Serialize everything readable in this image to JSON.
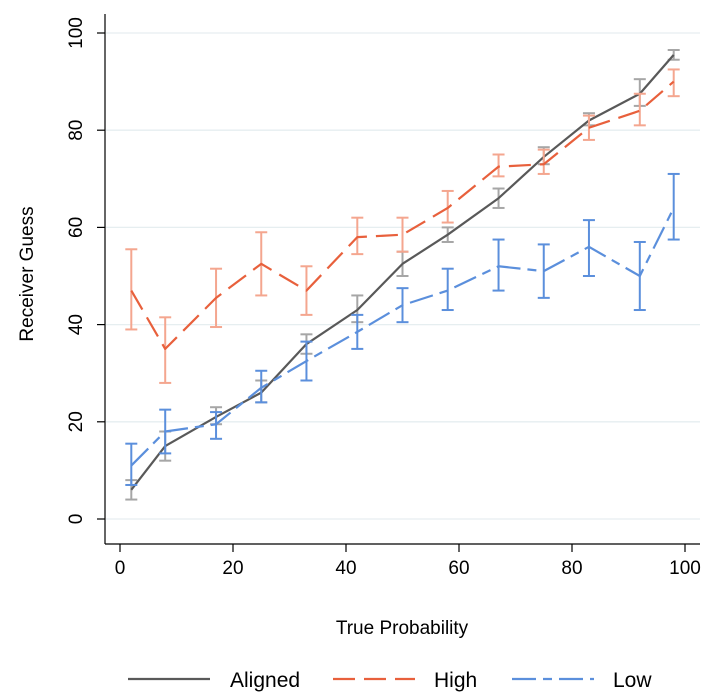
{
  "chart_data": {
    "type": "line",
    "title": "",
    "xlabel": "True Probability",
    "ylabel": "Receiver Guess",
    "xlim": [
      0,
      100
    ],
    "ylim": [
      0,
      100
    ],
    "xticks": [
      "0",
      "20",
      "40",
      "60",
      "80",
      "100"
    ],
    "yticks": [
      "0",
      "20",
      "40",
      "60",
      "80",
      "100"
    ],
    "grid": "horizontal",
    "legend_position": "bottom",
    "x": [
      2,
      8,
      17,
      25,
      33,
      42,
      50,
      58,
      67,
      75,
      83,
      92,
      98
    ],
    "series": [
      {
        "name": "Aligned",
        "color": "#595959",
        "error_color": "#a6a6a6",
        "dash": "solid",
        "values": [
          6,
          15,
          21,
          26,
          36,
          43,
          52.5,
          58.5,
          66,
          74.5,
          82,
          87.5,
          95.5
        ],
        "lower": [
          4,
          12,
          19.5,
          24,
          34,
          40.5,
          50,
          57,
          64,
          73,
          81,
          85,
          94.5
        ],
        "upper": [
          8,
          18,
          23,
          28.5,
          38,
          46,
          55,
          60,
          68,
          76.5,
          83.5,
          90.5,
          96.5
        ]
      },
      {
        "name": "High",
        "color": "#e8603c",
        "error_color": "#f4a68f",
        "dash": "long",
        "values": [
          47,
          35,
          45.5,
          52.5,
          47,
          58,
          58.5,
          64,
          72.5,
          73,
          80.5,
          84,
          90
        ],
        "lower": [
          39,
          28,
          39.5,
          46,
          42,
          54.5,
          55,
          61,
          70.5,
          71,
          78,
          81,
          87
        ],
        "upper": [
          55.5,
          41.5,
          51.5,
          59,
          52,
          62,
          62,
          67.5,
          75,
          76,
          83,
          87.5,
          92.5
        ]
      },
      {
        "name": "Low",
        "color": "#5b8fdc",
        "error_color": "#5b8fdc",
        "dash": "dashdot",
        "values": [
          11,
          18,
          19.5,
          27,
          32.5,
          38.5,
          44,
          47,
          52,
          51,
          56,
          50,
          64
        ],
        "lower": [
          7,
          13.5,
          16.5,
          24,
          28.5,
          35,
          40.5,
          43,
          47,
          45.5,
          50,
          43,
          57.5
        ],
        "upper": [
          15.5,
          22.5,
          22,
          30.5,
          36.5,
          42,
          47.5,
          51.5,
          57.5,
          56.5,
          61.5,
          57,
          71
        ]
      }
    ]
  }
}
